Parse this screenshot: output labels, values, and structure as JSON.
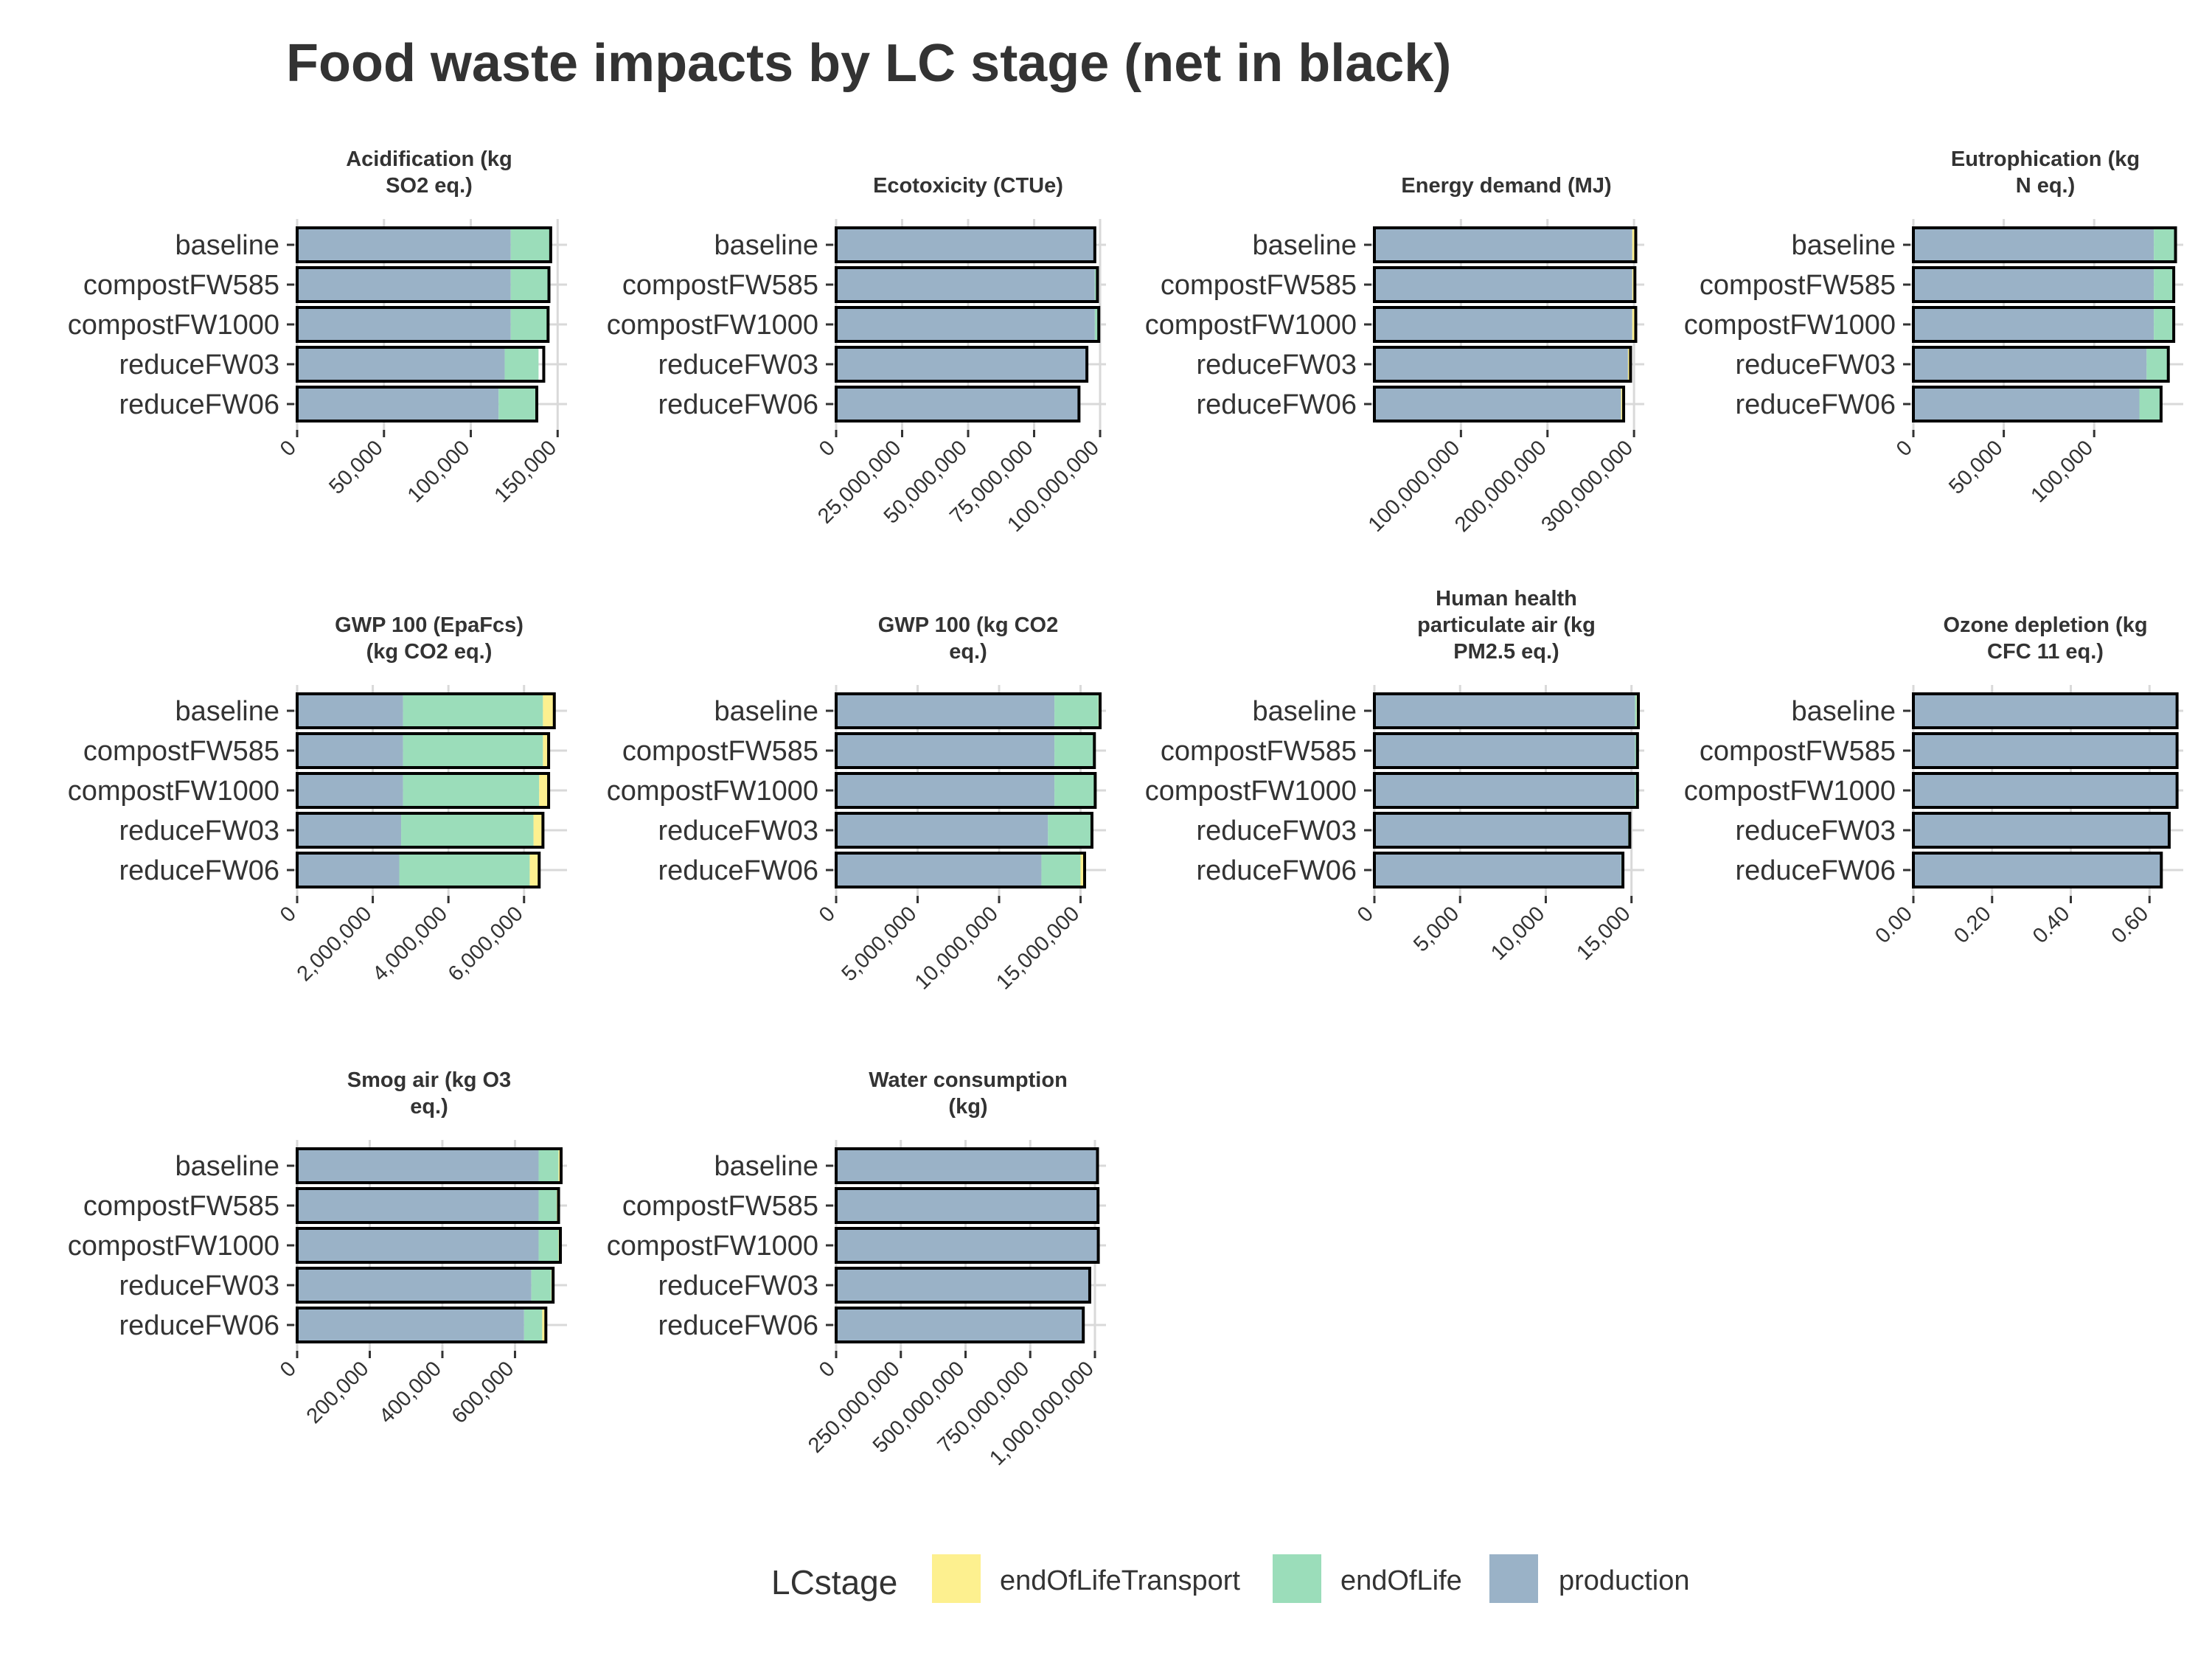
{
  "chart_data": {
    "type": "bar",
    "orientation": "horizontal",
    "stacked": true,
    "title": "Food waste impacts by LC stage (net in black)",
    "categories": [
      "baseline",
      "compostFW585",
      "compostFW1000",
      "reduceFW03",
      "reduceFW06"
    ],
    "colors": {
      "endOfLifeTransport": "#FDF08F",
      "endOfLife": "#9BDDBA",
      "production": "#9AB2C7",
      "net_outline": "#000000",
      "gridline": "#D9D9D9"
    },
    "legend": {
      "title": "LCstage",
      "position": "bottom",
      "items": [
        {
          "key": "endOfLifeTransport",
          "label": "endOfLifeTransport"
        },
        {
          "key": "endOfLife",
          "label": "endOfLife"
        },
        {
          "key": "production",
          "label": "production"
        }
      ]
    },
    "panels": [
      {
        "title": [
          "Acidification (kg",
          "SO2 eq.)"
        ],
        "xlim": [
          0,
          152000
        ],
        "ticks": [
          0,
          50000,
          100000,
          150000
        ],
        "tick_labels": [
          "0",
          "50,000",
          "100,000",
          "150,000"
        ],
        "series": {
          "production": [
            123000,
            123000,
            123000,
            119500,
            116000
          ],
          "endOfLife": [
            23000,
            22000,
            21000,
            19500,
            21500
          ],
          "endOfLifeTransport": [
            0,
            0,
            0,
            0,
            0
          ]
        },
        "net": [
          146000,
          145000,
          144500,
          142000,
          138000
        ]
      },
      {
        "title": [
          "Ecotoxicity (CTUe)"
        ],
        "xlim": [
          0,
          100000000
        ],
        "ticks": [
          0,
          25000000,
          50000000,
          75000000,
          100000000
        ],
        "tick_labels": [
          "0",
          "25,000,000",
          "50,000,000",
          "75,000,000",
          "100,000,000"
        ],
        "series": {
          "production": [
            98000000,
            98000000,
            98000000,
            95000000,
            92000000
          ],
          "endOfLife": [
            0,
            900000,
            1500000,
            0,
            0
          ],
          "endOfLifeTransport": [
            0,
            0,
            0,
            0,
            0
          ]
        },
        "net": [
          98000000,
          99000000,
          99500000,
          95000000,
          92000000
        ]
      },
      {
        "title": [
          "Energy demand (MJ)"
        ],
        "xlim": [
          0,
          305000000
        ],
        "ticks": [
          100000000,
          200000000,
          300000000
        ],
        "tick_labels": [
          "100,000,000",
          "200,000,000",
          "300,000,000"
        ],
        "series": {
          "production": [
            298000000,
            298000000,
            298000000,
            293000000,
            285000000
          ],
          "endOfLife": [
            0,
            0,
            0,
            0,
            0
          ],
          "endOfLifeTransport": [
            4000000,
            3000000,
            3500000,
            3000000,
            3000000
          ]
        },
        "net": [
          302000000,
          301000000,
          302000000,
          296000000,
          288000000
        ]
      },
      {
        "title": [
          "Eutrophication (kg",
          "N eq.)"
        ],
        "xlim": [
          0,
          146000
        ],
        "ticks": [
          0,
          50000,
          100000
        ],
        "tick_labels": [
          "0",
          "50,000",
          "100,000"
        ],
        "series": {
          "production": [
            133000,
            133000,
            133000,
            129000,
            125000
          ],
          "endOfLife": [
            12000,
            11000,
            11000,
            12000,
            12000
          ],
          "endOfLifeTransport": [
            0,
            0,
            0,
            0,
            0
          ]
        },
        "net": [
          145000,
          144000,
          144000,
          141000,
          137000
        ]
      },
      {
        "title": [
          "GWP 100 (EpaFcs)",
          "(kg CO2 eq.)"
        ],
        "xlim": [
          0,
          6980000
        ],
        "ticks": [
          0,
          2000000,
          4000000,
          6000000
        ],
        "tick_labels": [
          "0",
          "2,000,000",
          "4,000,000",
          "6,000,000"
        ],
        "series": {
          "production": [
            2800000,
            2800000,
            2800000,
            2750000,
            2700000
          ],
          "endOfLife": [
            3700000,
            3700000,
            3600000,
            3500000,
            3450000
          ],
          "endOfLifeTransport": [
            300000,
            150000,
            250000,
            250000,
            250000
          ]
        },
        "net": [
          6800000,
          6650000,
          6650000,
          6500000,
          6400000
        ]
      },
      {
        "title": [
          "GWP 100 (kg CO2",
          "eq.)"
        ],
        "xlim": [
          0,
          16200000
        ],
        "ticks": [
          0,
          5000000,
          10000000,
          15000000
        ],
        "tick_labels": [
          "0",
          "5,000,000",
          "10,000,000",
          "15,000,000"
        ],
        "series": {
          "production": [
            13400000,
            13400000,
            13400000,
            13000000,
            12600000
          ],
          "endOfLife": [
            2700000,
            2450000,
            2500000,
            2650000,
            2400000
          ],
          "endOfLifeTransport": [
            100000,
            0,
            0,
            0,
            250000
          ]
        },
        "net": [
          16200000,
          15850000,
          15900000,
          15700000,
          15250000
        ]
      },
      {
        "title": [
          "Human health",
          "particulate air (kg",
          "PM2.5 eq.)"
        ],
        "xlim": [
          0,
          15400
        ],
        "ticks": [
          0,
          5000,
          10000,
          15000
        ],
        "tick_labels": [
          "0",
          "5,000",
          "10,000",
          "15,000"
        ],
        "series": {
          "production": [
            15200,
            15200,
            15200,
            14800,
            14400
          ],
          "endOfLife": [
            100,
            100,
            100,
            100,
            100
          ],
          "endOfLifeTransport": [
            100,
            0,
            0,
            0,
            0
          ]
        },
        "net": [
          15400,
          15350,
          15350,
          14900,
          14500
        ]
      },
      {
        "title": [
          "Ozone depletion (kg",
          "CFC 11 eq.)"
        ],
        "xlim": [
          0,
          0.6707
        ],
        "ticks": [
          0,
          0.2,
          0.4,
          0.6
        ],
        "tick_labels": [
          "0.00",
          "0.20",
          "0.40",
          "0.60"
        ],
        "series": {
          "production": [
            0.67,
            0.67,
            0.67,
            0.65,
            0.63
          ],
          "endOfLife": [
            0,
            0,
            0,
            0,
            0
          ],
          "endOfLifeTransport": [
            0,
            0,
            0,
            0,
            0
          ]
        },
        "net": [
          0.67,
          0.67,
          0.67,
          0.65,
          0.63
        ]
      },
      {
        "title": [
          "Smog air (kg O3",
          "eq.)"
        ],
        "xlim": [
          0,
          727000
        ],
        "ticks": [
          0,
          200000,
          400000,
          600000
        ],
        "tick_labels": [
          "0",
          "200,000",
          "400,000",
          "600,000"
        ],
        "series": {
          "production": [
            665000,
            665000,
            665000,
            645000,
            625000
          ],
          "endOfLife": [
            55000,
            50000,
            55000,
            55000,
            50000
          ],
          "endOfLifeTransport": [
            7000,
            5000,
            7000,
            7000,
            7000
          ]
        },
        "net": [
          727000,
          720000,
          725000,
          705000,
          685000
        ]
      },
      {
        "title": [
          "Water consumption",
          "(kg)"
        ],
        "xlim": [
          0,
          1020000000
        ],
        "ticks": [
          0,
          250000000,
          500000000,
          750000000,
          1000000000
        ],
        "tick_labels": [
          "0",
          "250,000,000",
          "500,000,000",
          "750,000,000",
          "1,000,000,000"
        ],
        "series": {
          "production": [
            1010000000,
            1012000000,
            1013000000,
            980000000,
            955000000
          ],
          "endOfLife": [
            0,
            0,
            0,
            0,
            0
          ],
          "endOfLifeTransport": [
            0,
            0,
            0,
            0,
            0
          ]
        },
        "net": [
          1010000000,
          1012000000,
          1013000000,
          980000000,
          955000000
        ]
      }
    ]
  }
}
